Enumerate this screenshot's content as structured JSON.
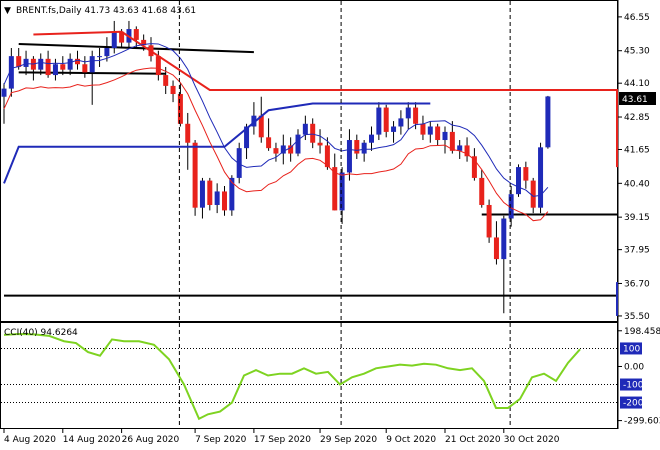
{
  "header": {
    "symbol_line": "BRENT.fs,Daily  41.73 43.63 41.68 43.61",
    "arrow_glyph": "▼"
  },
  "price_badge": "43.61",
  "colors": {
    "bull_body": "#1f2ab8",
    "bear_body": "#e8221c",
    "wick": "#000000",
    "red_line": "#e8221c",
    "blue_line": "#1f2ab8",
    "black_line": "#000000",
    "cci_line": "#7ed321",
    "badge_bg": "#000000",
    "badge_text": "#ffffff",
    "grid": "#000000"
  },
  "chart_data": [
    {
      "type": "candlestick",
      "title": "BRENT.fs,Daily",
      "ohlc_last": {
        "open": 41.73,
        "high": 43.63,
        "low": 41.68,
        "close": 43.61
      },
      "ylim": [
        35.5,
        47.0
      ],
      "y_ticks": [
        "46.55",
        "45.30",
        "44.10",
        "42.85",
        "41.65",
        "40.40",
        "39.15",
        "37.95",
        "36.70",
        "35.50"
      ],
      "x_labels": [
        "4 Aug 2020",
        "14 Aug 2020",
        "26 Aug 2020",
        "7 Sep 2020",
        "17 Sep 2020",
        "29 Sep 2020",
        "9 Oct 2020",
        "21 Oct 2020",
        "30 Oct 2020"
      ],
      "vertical_markers": [
        "26 Aug 2020",
        "29 Sep 2020",
        "30 Oct 2020"
      ],
      "candles": [
        [
          43.6,
          44.1,
          42.6,
          43.9
        ],
        [
          43.9,
          45.4,
          43.6,
          45.1
        ],
        [
          45.1,
          45.4,
          44.6,
          44.7
        ],
        [
          44.7,
          45.3,
          44.4,
          45.0
        ],
        [
          45.0,
          45.1,
          44.2,
          44.6
        ],
        [
          44.6,
          45.2,
          44.4,
          45.0
        ],
        [
          45.0,
          45.3,
          44.3,
          44.4
        ],
        [
          44.4,
          45.0,
          44.2,
          44.8
        ],
        [
          44.8,
          45.1,
          44.4,
          44.6
        ],
        [
          44.6,
          45.2,
          44.4,
          45.0
        ],
        [
          45.0,
          45.3,
          44.6,
          44.8
        ],
        [
          44.8,
          45.1,
          44.3,
          44.5
        ],
        [
          44.5,
          45.3,
          43.3,
          45.1
        ],
        [
          45.1,
          45.4,
          44.7,
          45.1
        ],
        [
          45.1,
          45.8,
          44.9,
          45.4
        ],
        [
          45.4,
          46.4,
          45.2,
          46.0
        ],
        [
          46.0,
          46.1,
          45.4,
          45.6
        ],
        [
          45.6,
          46.4,
          45.4,
          46.1
        ],
        [
          46.1,
          46.2,
          45.4,
          45.7
        ],
        [
          45.7,
          45.9,
          45.3,
          45.5
        ],
        [
          45.5,
          45.8,
          44.9,
          45.1
        ],
        [
          45.1,
          45.3,
          44.2,
          44.4
        ],
        [
          44.4,
          44.7,
          43.7,
          44.0
        ],
        [
          44.0,
          44.2,
          43.4,
          43.7
        ],
        [
          43.7,
          44.1,
          42.5,
          42.6
        ],
        [
          42.6,
          43.0,
          40.9,
          41.9
        ],
        [
          41.9,
          42.0,
          39.2,
          39.5
        ],
        [
          39.5,
          40.6,
          39.1,
          40.5
        ],
        [
          40.5,
          40.6,
          39.4,
          39.6
        ],
        [
          39.6,
          40.4,
          39.3,
          40.1
        ],
        [
          40.1,
          40.3,
          39.2,
          39.4
        ],
        [
          39.4,
          40.7,
          39.2,
          40.6
        ],
        [
          40.6,
          41.9,
          40.4,
          41.7
        ],
        [
          41.7,
          42.6,
          41.3,
          42.5
        ],
        [
          42.5,
          43.4,
          42.2,
          42.9
        ],
        [
          42.9,
          43.6,
          41.9,
          42.1
        ],
        [
          42.1,
          42.8,
          41.6,
          41.7
        ],
        [
          41.7,
          41.9,
          41.2,
          41.5
        ],
        [
          41.5,
          42.2,
          41.1,
          41.8
        ],
        [
          41.8,
          42.1,
          41.2,
          41.5
        ],
        [
          41.5,
          42.4,
          41.4,
          42.2
        ],
        [
          42.2,
          42.9,
          42.0,
          42.6
        ],
        [
          42.6,
          42.8,
          41.7,
          41.9
        ],
        [
          41.9,
          42.4,
          41.5,
          41.8
        ],
        [
          41.8,
          42.1,
          40.9,
          41.0
        ],
        [
          41.0,
          41.5,
          39.4,
          39.4
        ],
        [
          39.4,
          41.0,
          38.9,
          40.8
        ],
        [
          40.8,
          42.4,
          40.5,
          42.0
        ],
        [
          42.0,
          42.2,
          41.3,
          41.5
        ],
        [
          41.5,
          42.0,
          41.2,
          41.9
        ],
        [
          41.9,
          42.5,
          41.6,
          42.2
        ],
        [
          42.2,
          43.4,
          42.0,
          43.2
        ],
        [
          43.2,
          43.3,
          42.1,
          42.3
        ],
        [
          42.3,
          42.7,
          41.9,
          42.5
        ],
        [
          42.5,
          43.1,
          42.2,
          42.8
        ],
        [
          42.8,
          43.4,
          42.4,
          43.2
        ],
        [
          43.2,
          43.4,
          42.4,
          42.6
        ],
        [
          42.6,
          42.9,
          42.0,
          42.2
        ],
        [
          42.2,
          42.7,
          41.9,
          42.5
        ],
        [
          42.5,
          42.6,
          41.8,
          42.0
        ],
        [
          42.0,
          42.5,
          41.5,
          42.3
        ],
        [
          42.3,
          42.7,
          41.5,
          41.6
        ],
        [
          41.6,
          42.0,
          41.3,
          41.8
        ],
        [
          41.8,
          42.1,
          41.2,
          41.4
        ],
        [
          41.4,
          41.7,
          40.5,
          40.6
        ],
        [
          40.6,
          40.9,
          39.5,
          39.6
        ],
        [
          39.6,
          39.8,
          38.2,
          38.4
        ],
        [
          38.4,
          39.0,
          37.4,
          37.6
        ],
        [
          37.6,
          39.2,
          35.6,
          39.1
        ],
        [
          39.1,
          40.3,
          38.8,
          40.0
        ],
        [
          40.0,
          41.1,
          39.9,
          41.0
        ],
        [
          41.0,
          41.2,
          40.2,
          40.5
        ],
        [
          40.5,
          40.6,
          39.3,
          39.5
        ],
        [
          39.5,
          41.9,
          39.3,
          41.73
        ],
        [
          41.73,
          43.63,
          41.68,
          43.61
        ]
      ],
      "series": [
        {
          "name": "",
          "color": "#e8221c",
          "values": [
            {
              "x": 4,
              "y": 45.9
            },
            {
              "x": 16,
              "y": 46.0
            },
            {
              "x": 28,
              "y": 43.85
            },
            {
              "x": 42,
              "y": 43.85
            },
            {
              "x": 62,
              "y": 43.85
            },
            {
              "x": 85,
              "y": 43.85
            },
            {
              "x": 100,
              "y": 43.85
            },
            {
              "x": 120,
              "y": 43.85
            },
            {
              "x": 135,
              "y": 43.85
            },
            {
              "x": 148,
              "y": 43.85
            },
            {
              "x": 160,
              "y": 43.85
            },
            {
              "x": 162,
              "y": 41.0
            },
            {
              "x": 175,
              "y": 41.0
            }
          ]
        },
        {
          "name": "",
          "color": "#1f2ab8",
          "values": [
            {
              "x": 0,
              "y": 40.4
            },
            {
              "x": 2,
              "y": 41.75
            },
            {
              "x": 30,
              "y": 41.75
            },
            {
              "x": 36,
              "y": 43.1
            },
            {
              "x": 42,
              "y": 43.35
            },
            {
              "x": 56,
              "y": 43.35
            },
            {
              "x": 58,
              "y": 43.35
            }
          ]
        },
        {
          "name": "",
          "color": "#1f2ab8",
          "values": [
            {
              "x": 172,
              "y": 35.5
            },
            {
              "x": 175,
              "y": 35.75
            },
            {
              "x": 178,
              "y": 35.75
            },
            {
              "x": 181,
              "y": 36.75
            },
            {
              "x": 184,
              "y": 36.75
            }
          ]
        }
      ],
      "horizontal_levels": [
        {
          "y_start": 44.5,
          "y_end": 44.45,
          "x_from": 2,
          "x_to": 22
        },
        {
          "y_start": 45.55,
          "y_end": 45.25,
          "x_from": 2,
          "x_to": 34
        },
        {
          "y_start": 39.25,
          "y_end": 39.25,
          "x_from": 65,
          "x_to": 170
        },
        {
          "y_start": 36.25,
          "y_end": 36.25,
          "x_from": 0,
          "x_to": 200
        }
      ]
    },
    {
      "type": "line",
      "title": "CCI(40) 94.6264",
      "ylim": [
        -340,
        230
      ],
      "y_ticks": [
        "198.4581",
        "100",
        "0.00",
        "-100",
        "-200",
        "-299.603"
      ],
      "levels": [
        100,
        -100,
        -200
      ],
      "series": [
        {
          "name": "CCI(40)",
          "values": [
            {
              "x": 0,
              "y": 175
            },
            {
              "x": 5,
              "y": 180
            },
            {
              "x": 10,
              "y": 178
            },
            {
              "x": 15,
              "y": 170
            },
            {
              "x": 20,
              "y": 140
            },
            {
              "x": 24,
              "y": 130
            },
            {
              "x": 28,
              "y": 80
            },
            {
              "x": 32,
              "y": 60
            },
            {
              "x": 36,
              "y": 150
            },
            {
              "x": 40,
              "y": 140
            },
            {
              "x": 45,
              "y": 140
            },
            {
              "x": 50,
              "y": 120
            },
            {
              "x": 55,
              "y": 40
            },
            {
              "x": 60,
              "y": -100
            },
            {
              "x": 65,
              "y": -290
            },
            {
              "x": 68,
              "y": -265
            },
            {
              "x": 72,
              "y": -250
            },
            {
              "x": 76,
              "y": -200
            },
            {
              "x": 80,
              "y": -50
            },
            {
              "x": 84,
              "y": -20
            },
            {
              "x": 88,
              "y": -50
            },
            {
              "x": 92,
              "y": -40
            },
            {
              "x": 96,
              "y": -40
            },
            {
              "x": 100,
              "y": -10
            },
            {
              "x": 104,
              "y": -40
            },
            {
              "x": 108,
              "y": -30
            },
            {
              "x": 112,
              "y": -100
            },
            {
              "x": 116,
              "y": -60
            },
            {
              "x": 120,
              "y": -40
            },
            {
              "x": 124,
              "y": -10
            },
            {
              "x": 128,
              "y": 0
            },
            {
              "x": 132,
              "y": 10
            },
            {
              "x": 136,
              "y": 5
            },
            {
              "x": 140,
              "y": 15
            },
            {
              "x": 144,
              "y": 10
            },
            {
              "x": 148,
              "y": -10
            },
            {
              "x": 152,
              "y": -20
            },
            {
              "x": 156,
              "y": -10
            },
            {
              "x": 160,
              "y": -80
            },
            {
              "x": 164,
              "y": -230
            },
            {
              "x": 168,
              "y": -230
            },
            {
              "x": 172,
              "y": -180
            },
            {
              "x": 176,
              "y": -60
            },
            {
              "x": 180,
              "y": -40
            },
            {
              "x": 184,
              "y": -80
            },
            {
              "x": 188,
              "y": 20
            },
            {
              "x": 192,
              "y": 95
            }
          ]
        }
      ]
    }
  ]
}
